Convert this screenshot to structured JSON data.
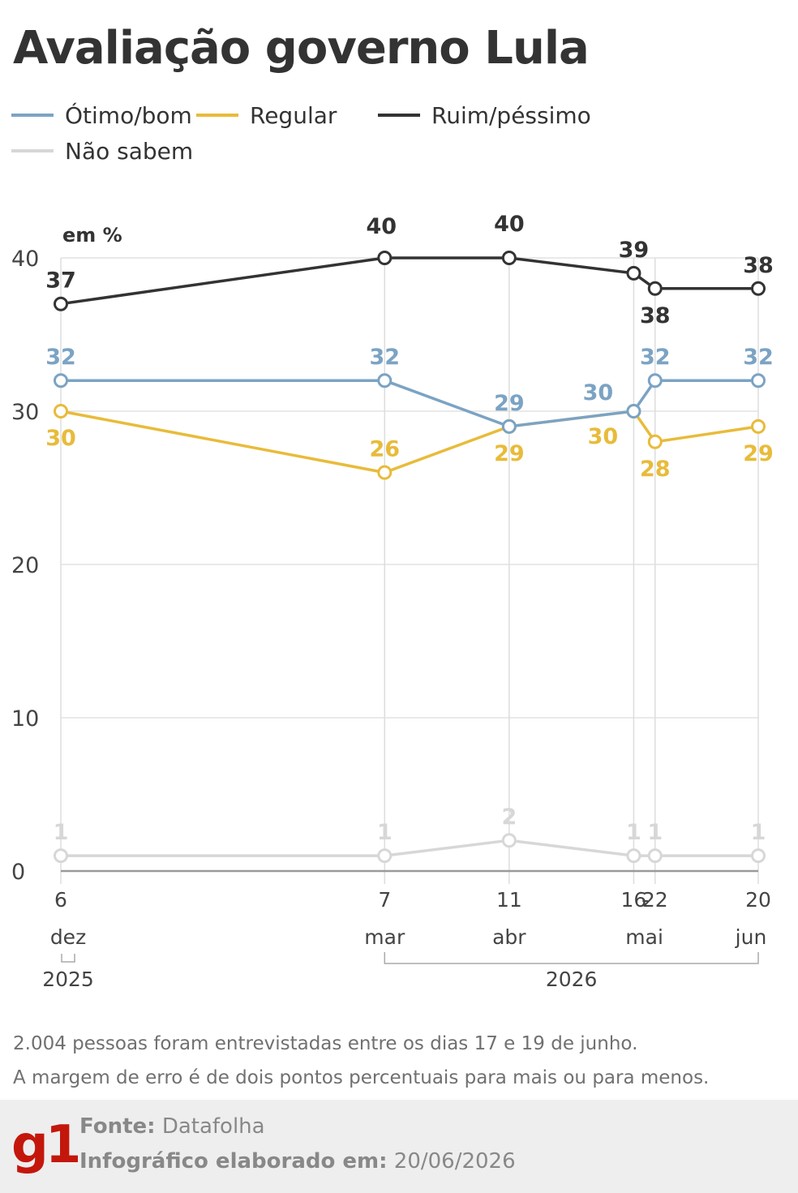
{
  "title": "Avaliação governo Lula",
  "legend": [
    {
      "label": "Ótimo/bom",
      "color": "#7ba3c4"
    },
    {
      "label": "Regular",
      "color": "#e8bb3a"
    },
    {
      "label": "Ruim/péssimo",
      "color": "#333333"
    },
    {
      "label": "Não sabem",
      "color": "#d7d7d7"
    }
  ],
  "chart_data": {
    "type": "line",
    "unit_label": "em %",
    "ylim": [
      0,
      40
    ],
    "yticks": [
      "0",
      "10",
      "20",
      "30",
      "40"
    ],
    "grid": true,
    "x": [
      "2025-12-06",
      "2026-03-07",
      "2026-04-11",
      "2026-05-16",
      "2026-05-22",
      "2026-06-20"
    ],
    "x_tick_days": [
      "6",
      "7",
      "11",
      "16",
      "22",
      "20"
    ],
    "x_range_separator": "-",
    "x_months": [
      "dez",
      "mar",
      "abr",
      "mai",
      "jun"
    ],
    "x_years": [
      "2025",
      "2026"
    ],
    "series": [
      {
        "name": "Ruim/péssimo",
        "color": "#333333",
        "values": [
          37,
          40,
          40,
          39,
          38,
          38
        ]
      },
      {
        "name": "Ótimo/bom",
        "color": "#7ba3c4",
        "values": [
          32,
          32,
          29,
          30,
          32,
          32
        ]
      },
      {
        "name": "Regular",
        "color": "#e8bb3a",
        "values": [
          30,
          26,
          29,
          30,
          28,
          29
        ]
      },
      {
        "name": "Não sabem",
        "color": "#d7d7d7",
        "values": [
          1,
          1,
          2,
          1,
          1,
          1
        ]
      }
    ]
  },
  "notes": [
    "2.004 pessoas foram entrevistadas entre os dias 17 e 19 de junho.",
    "A margem de erro é de dois pontos percentuais para mais ou para menos."
  ],
  "footer": {
    "logo": "g1",
    "source_label": "Fonte:",
    "source_value": "Datafolha",
    "date_label": "Infográfico elaborado em:",
    "date_value": "20/06/2026"
  }
}
